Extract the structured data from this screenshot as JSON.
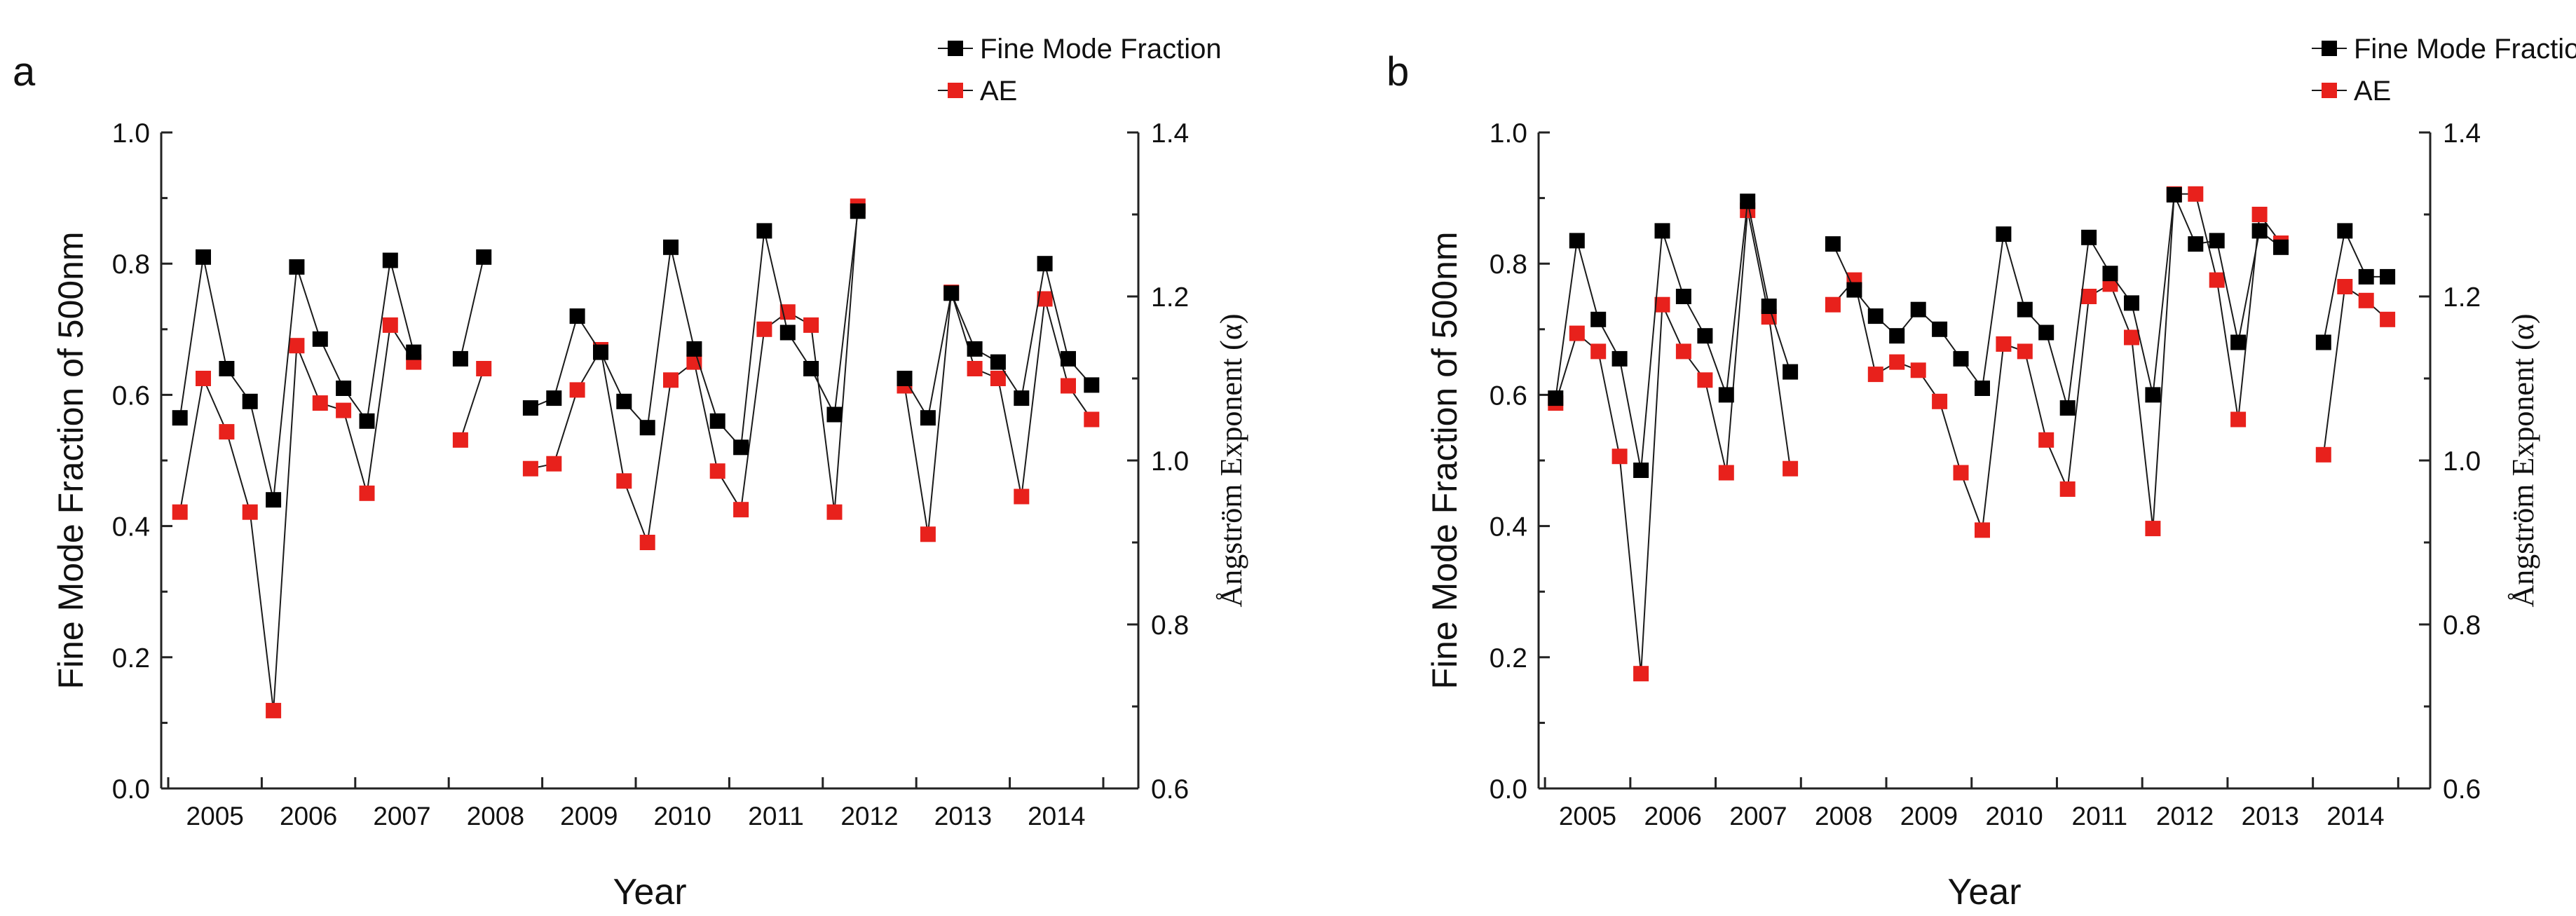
{
  "colors": {
    "fmf": "#000000",
    "ae": "#e8211c",
    "axis": "#222222",
    "line": "#1a1a1a"
  },
  "chart_data": [
    {
      "panel_label": "a",
      "type": "line",
      "title": "",
      "xlabel": "Year",
      "ylabel": "Fine Mode Fraction of 500nm",
      "y2label": "Ångström Exponent (α)",
      "ylim": [
        0.0,
        1.0
      ],
      "y2lim": [
        0.6,
        1.4
      ],
      "yticks": [
        "0.0",
        "0.2",
        "0.4",
        "0.6",
        "0.8",
        "1.0"
      ],
      "y2ticks": [
        "0.6",
        "0.8",
        "1.0",
        "1.2",
        "1.4"
      ],
      "xlim": [
        2004.55,
        2015.0
      ],
      "categories": [
        "2005",
        "2006",
        "2007",
        "2008",
        "2009",
        "2010",
        "2011",
        "2012",
        "2013",
        "2014"
      ],
      "grid": false,
      "legend_position": "top-right",
      "series": [
        {
          "name": "Fine Mode Fraction",
          "axis": "left",
          "segments": [
            [
              [
                2004.75,
                0.565
              ],
              [
                2005.0,
                0.81
              ],
              [
                2005.25,
                0.64
              ],
              [
                2005.5,
                0.59
              ],
              [
                2005.75,
                0.44
              ],
              [
                2006.0,
                0.795
              ],
              [
                2006.25,
                0.685
              ],
              [
                2006.5,
                0.61
              ],
              [
                2006.75,
                0.56
              ],
              [
                2007.0,
                0.805
              ],
              [
                2007.25,
                0.665
              ]
            ],
            [
              [
                2007.75,
                0.655
              ],
              [
                2008.0,
                0.81
              ]
            ],
            [
              [
                2008.5,
                0.58
              ],
              [
                2008.75,
                0.595
              ],
              [
                2009.0,
                0.72
              ],
              [
                2009.25,
                0.665
              ],
              [
                2009.5,
                0.59
              ],
              [
                2009.75,
                0.55
              ],
              [
                2010.0,
                0.825
              ],
              [
                2010.25,
                0.67
              ],
              [
                2010.5,
                0.56
              ],
              [
                2010.75,
                0.52
              ],
              [
                2011.0,
                0.85
              ],
              [
                2011.25,
                0.695
              ],
              [
                2011.5,
                0.64
              ],
              [
                2011.75,
                0.57
              ],
              [
                2012.0,
                0.88
              ]
            ],
            [
              [
                2012.5,
                0.625
              ],
              [
                2012.75,
                0.565
              ],
              [
                2013.0,
                0.755
              ],
              [
                2013.25,
                0.67
              ],
              [
                2013.5,
                0.65
              ],
              [
                2013.75,
                0.595
              ],
              [
                2014.0,
                0.8
              ],
              [
                2014.25,
                0.655
              ],
              [
                2014.5,
                0.615
              ]
            ]
          ]
        },
        {
          "name": "AE",
          "axis": "right",
          "segments": [
            [
              [
                2004.75,
                0.937
              ],
              [
                2005.0,
                1.1
              ],
              [
                2005.25,
                1.035
              ],
              [
                2005.5,
                0.937
              ],
              [
                2005.75,
                0.695
              ],
              [
                2006.0,
                1.14
              ],
              [
                2006.25,
                1.07
              ],
              [
                2006.5,
                1.061
              ],
              [
                2006.75,
                0.96
              ],
              [
                2007.0,
                1.165
              ],
              [
                2007.25,
                1.12
              ]
            ],
            [
              [
                2007.75,
                1.025
              ],
              [
                2008.0,
                1.112
              ]
            ],
            [
              [
                2008.5,
                0.99
              ],
              [
                2008.75,
                0.996
              ],
              [
                2009.0,
                1.086
              ],
              [
                2009.25,
                1.135
              ],
              [
                2009.5,
                0.975
              ],
              [
                2009.75,
                0.9
              ],
              [
                2010.0,
                1.098
              ],
              [
                2010.25,
                1.12
              ],
              [
                2010.5,
                0.987
              ],
              [
                2010.75,
                0.94
              ],
              [
                2011.0,
                1.16
              ],
              [
                2011.25,
                1.181
              ],
              [
                2011.5,
                1.165
              ],
              [
                2011.75,
                0.937
              ],
              [
                2012.0,
                1.31
              ]
            ],
            [
              [
                2012.5,
                1.091
              ],
              [
                2012.75,
                0.91
              ],
              [
                2013.0,
                1.205
              ],
              [
                2013.25,
                1.112
              ],
              [
                2013.5,
                1.1
              ],
              [
                2013.75,
                0.956
              ],
              [
                2014.0,
                1.197
              ],
              [
                2014.25,
                1.091
              ],
              [
                2014.5,
                1.05
              ]
            ]
          ]
        }
      ]
    },
    {
      "panel_label": "b",
      "type": "line",
      "title": "",
      "xlabel": "Year",
      "ylabel": "Fine Mode Fraction of 500nm",
      "y2label": "Ångström Exponent (α)",
      "ylim": [
        0.0,
        1.0
      ],
      "y2lim": [
        0.6,
        1.4
      ],
      "yticks": [
        "0.0",
        "0.2",
        "0.4",
        "0.6",
        "0.8",
        "1.0"
      ],
      "y2ticks": [
        "0.6",
        "0.8",
        "1.0",
        "1.2",
        "1.4"
      ],
      "xlim": [
        2004.55,
        2015.0
      ],
      "categories": [
        "2005",
        "2006",
        "2007",
        "2008",
        "2009",
        "2010",
        "2011",
        "2012",
        "2013",
        "2014"
      ],
      "grid": false,
      "legend_position": "top-right",
      "series": [
        {
          "name": "Fine Mode Fraction",
          "axis": "left",
          "segments": [
            [
              [
                2004.75,
                0.595
              ],
              [
                2005.0,
                0.835
              ],
              [
                2005.25,
                0.715
              ],
              [
                2005.5,
                0.655
              ],
              [
                2005.75,
                0.485
              ],
              [
                2006.0,
                0.85
              ],
              [
                2006.25,
                0.75
              ],
              [
                2006.5,
                0.69
              ],
              [
                2006.75,
                0.6
              ],
              [
                2007.0,
                0.895
              ],
              [
                2007.25,
                0.735
              ],
              [
                2007.5,
                0.635
              ]
            ],
            [
              [
                2008.0,
                0.83
              ],
              [
                2008.25,
                0.76
              ],
              [
                2008.5,
                0.72
              ],
              [
                2008.75,
                0.69
              ],
              [
                2009.0,
                0.73
              ],
              [
                2009.25,
                0.7
              ],
              [
                2009.5,
                0.655
              ],
              [
                2009.75,
                0.61
              ],
              [
                2010.0,
                0.845
              ],
              [
                2010.25,
                0.73
              ],
              [
                2010.5,
                0.695
              ],
              [
                2010.75,
                0.58
              ],
              [
                2011.0,
                0.84
              ],
              [
                2011.25,
                0.785
              ],
              [
                2011.5,
                0.74
              ],
              [
                2011.75,
                0.6
              ],
              [
                2012.0,
                0.905
              ],
              [
                2012.25,
                0.83
              ],
              [
                2012.5,
                0.835
              ],
              [
                2012.75,
                0.68
              ],
              [
                2013.0,
                0.85
              ],
              [
                2013.25,
                0.825
              ]
            ],
            [
              [
                2013.75,
                0.68
              ],
              [
                2014.0,
                0.85
              ],
              [
                2014.25,
                0.78
              ],
              [
                2014.5,
                0.78
              ]
            ]
          ]
        },
        {
          "name": "AE",
          "axis": "right",
          "segments": [
            [
              [
                2004.75,
                1.07
              ],
              [
                2005.0,
                1.155
              ],
              [
                2005.25,
                1.133
              ],
              [
                2005.5,
                1.005
              ],
              [
                2005.75,
                0.74
              ],
              [
                2006.0,
                1.19
              ],
              [
                2006.25,
                1.133
              ],
              [
                2006.5,
                1.098
              ],
              [
                2006.75,
                0.985
              ],
              [
                2007.0,
                1.305
              ],
              [
                2007.25,
                1.175
              ],
              [
                2007.5,
                0.99
              ]
            ],
            [
              [
                2008.0,
                1.19
              ],
              [
                2008.25,
                1.22
              ],
              [
                2008.5,
                1.105
              ],
              [
                2008.75,
                1.12
              ],
              [
                2009.0,
                1.11
              ],
              [
                2009.25,
                1.072
              ],
              [
                2009.5,
                0.985
              ],
              [
                2009.75,
                0.915
              ],
              [
                2010.0,
                1.142
              ],
              [
                2010.25,
                1.133
              ],
              [
                2010.5,
                1.025
              ],
              [
                2010.75,
                0.965
              ],
              [
                2011.0,
                1.2
              ],
              [
                2011.25,
                1.215
              ],
              [
                2011.5,
                1.15
              ],
              [
                2011.75,
                0.917
              ],
              [
                2012.0,
                1.325
              ],
              [
                2012.25,
                1.325
              ],
              [
                2012.5,
                1.22
              ],
              [
                2012.75,
                1.05
              ],
              [
                2013.0,
                1.3
              ],
              [
                2013.25,
                1.265
              ]
            ],
            [
              [
                2013.75,
                1.007
              ],
              [
                2014.0,
                1.212
              ],
              [
                2014.25,
                1.195
              ],
              [
                2014.5,
                1.172
              ]
            ]
          ]
        }
      ]
    }
  ]
}
